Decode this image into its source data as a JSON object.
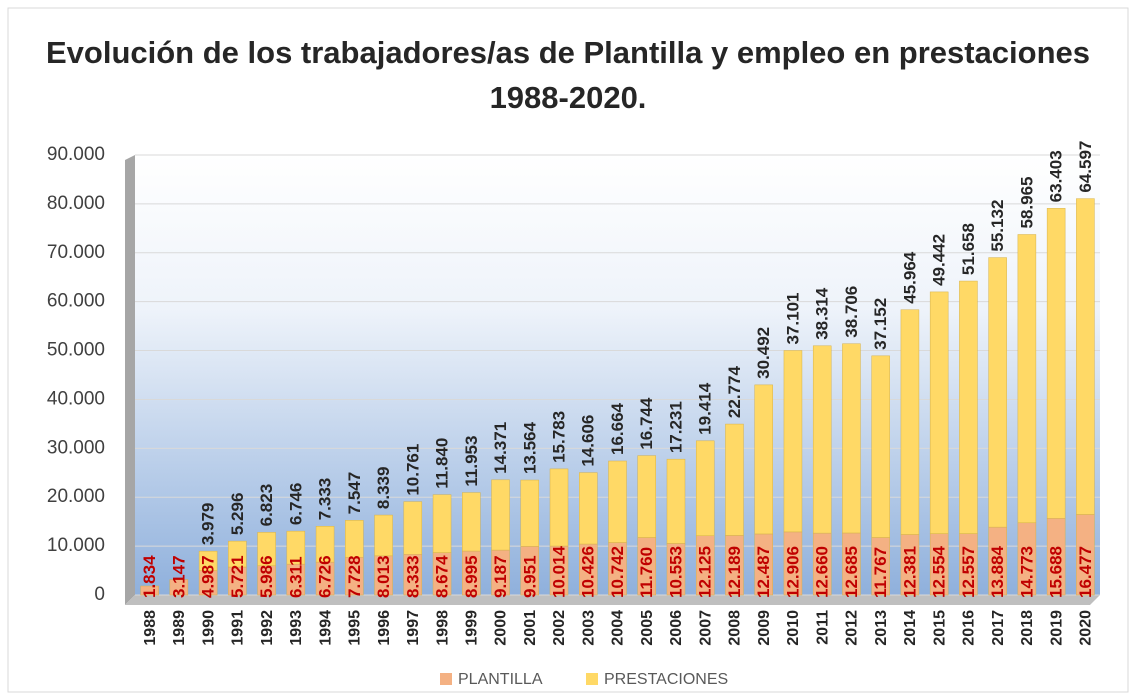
{
  "chart_data": {
    "type": "stacked_bar",
    "title": "Evolución de los trabajadores/as de Plantilla y empleo en prestaciones 1988-2020.",
    "categories": [
      "1988",
      "1989",
      "1990",
      "1991",
      "1992",
      "1993",
      "1994",
      "1995",
      "1996",
      "1997",
      "1998",
      "1999",
      "2000",
      "2001",
      "2002",
      "2003",
      "2004",
      "2005",
      "2006",
      "2007",
      "2008",
      "2009",
      "2010",
      "2011",
      "2012",
      "2013",
      "2014",
      "2015",
      "2016",
      "2017",
      "2018",
      "2019",
      "2020"
    ],
    "series": [
      {
        "name": "PLANTILLA",
        "color": "#f4b183",
        "label_color": "#c00000",
        "values": [
          1834,
          3147,
          4987,
          5721,
          5986,
          6311,
          6726,
          7728,
          8013,
          8333,
          8674,
          8995,
          9187,
          9951,
          10014,
          10426,
          10742,
          11760,
          10553,
          12125,
          12189,
          12487,
          12906,
          12660,
          12685,
          11767,
          12381,
          12554,
          12557,
          13884,
          14773,
          15688,
          16477
        ],
        "value_labels": [
          "1.834",
          "3.147",
          "4.987",
          "5.721",
          "5.986",
          "6.311",
          "6.726",
          "7.728",
          "8.013",
          "8.333",
          "8.674",
          "8.995",
          "9.187",
          "9.951",
          "10.014",
          "10.426",
          "10.742",
          "11.760",
          "10.553",
          "12.125",
          "12.189",
          "12.487",
          "12.906",
          "12.660",
          "12.685",
          "11.767",
          "12.381",
          "12.554",
          "12.557",
          "13.884",
          "14.773",
          "15.688",
          "16.477"
        ]
      },
      {
        "name": "PRESTACIONES",
        "color": "#ffd966",
        "label_color": "#262626",
        "values": [
          null,
          null,
          3979,
          5296,
          6823,
          6746,
          7333,
          7547,
          8339,
          10761,
          11840,
          11953,
          14371,
          13564,
          15783,
          14606,
          16664,
          16744,
          17231,
          19414,
          22774,
          30492,
          37101,
          38314,
          38706,
          37152,
          45964,
          49442,
          51658,
          55132,
          58965,
          63403,
          64597
        ],
        "value_labels": [
          null,
          null,
          "3.979",
          "5.296",
          "6.823",
          "6.746",
          "7.333",
          "7.547",
          "8.339",
          "10.761",
          "11.840",
          "11.953",
          "14.371",
          "13.564",
          "15.783",
          "14.606",
          "16.664",
          "16.744",
          "17.231",
          "19.414",
          "22.774",
          "30.492",
          "37.101",
          "38.314",
          "38.706",
          "37.152",
          "45.964",
          "49.442",
          "51.658",
          "55.132",
          "58.965",
          "63.403",
          "64.597"
        ]
      }
    ],
    "ylim": [
      0,
      90000
    ],
    "yticks": [
      {
        "value": 0,
        "label": "0"
      },
      {
        "value": 10000,
        "label": "10.000"
      },
      {
        "value": 20000,
        "label": "20.000"
      },
      {
        "value": 30000,
        "label": "30.000"
      },
      {
        "value": 40000,
        "label": "40.000"
      },
      {
        "value": 50000,
        "label": "50.000"
      },
      {
        "value": 60000,
        "label": "60.000"
      },
      {
        "value": 70000,
        "label": "70.000"
      },
      {
        "value": 80000,
        "label": "80.000"
      },
      {
        "value": 90000,
        "label": "90.000"
      }
    ],
    "grid": true,
    "legend": "bottom"
  }
}
